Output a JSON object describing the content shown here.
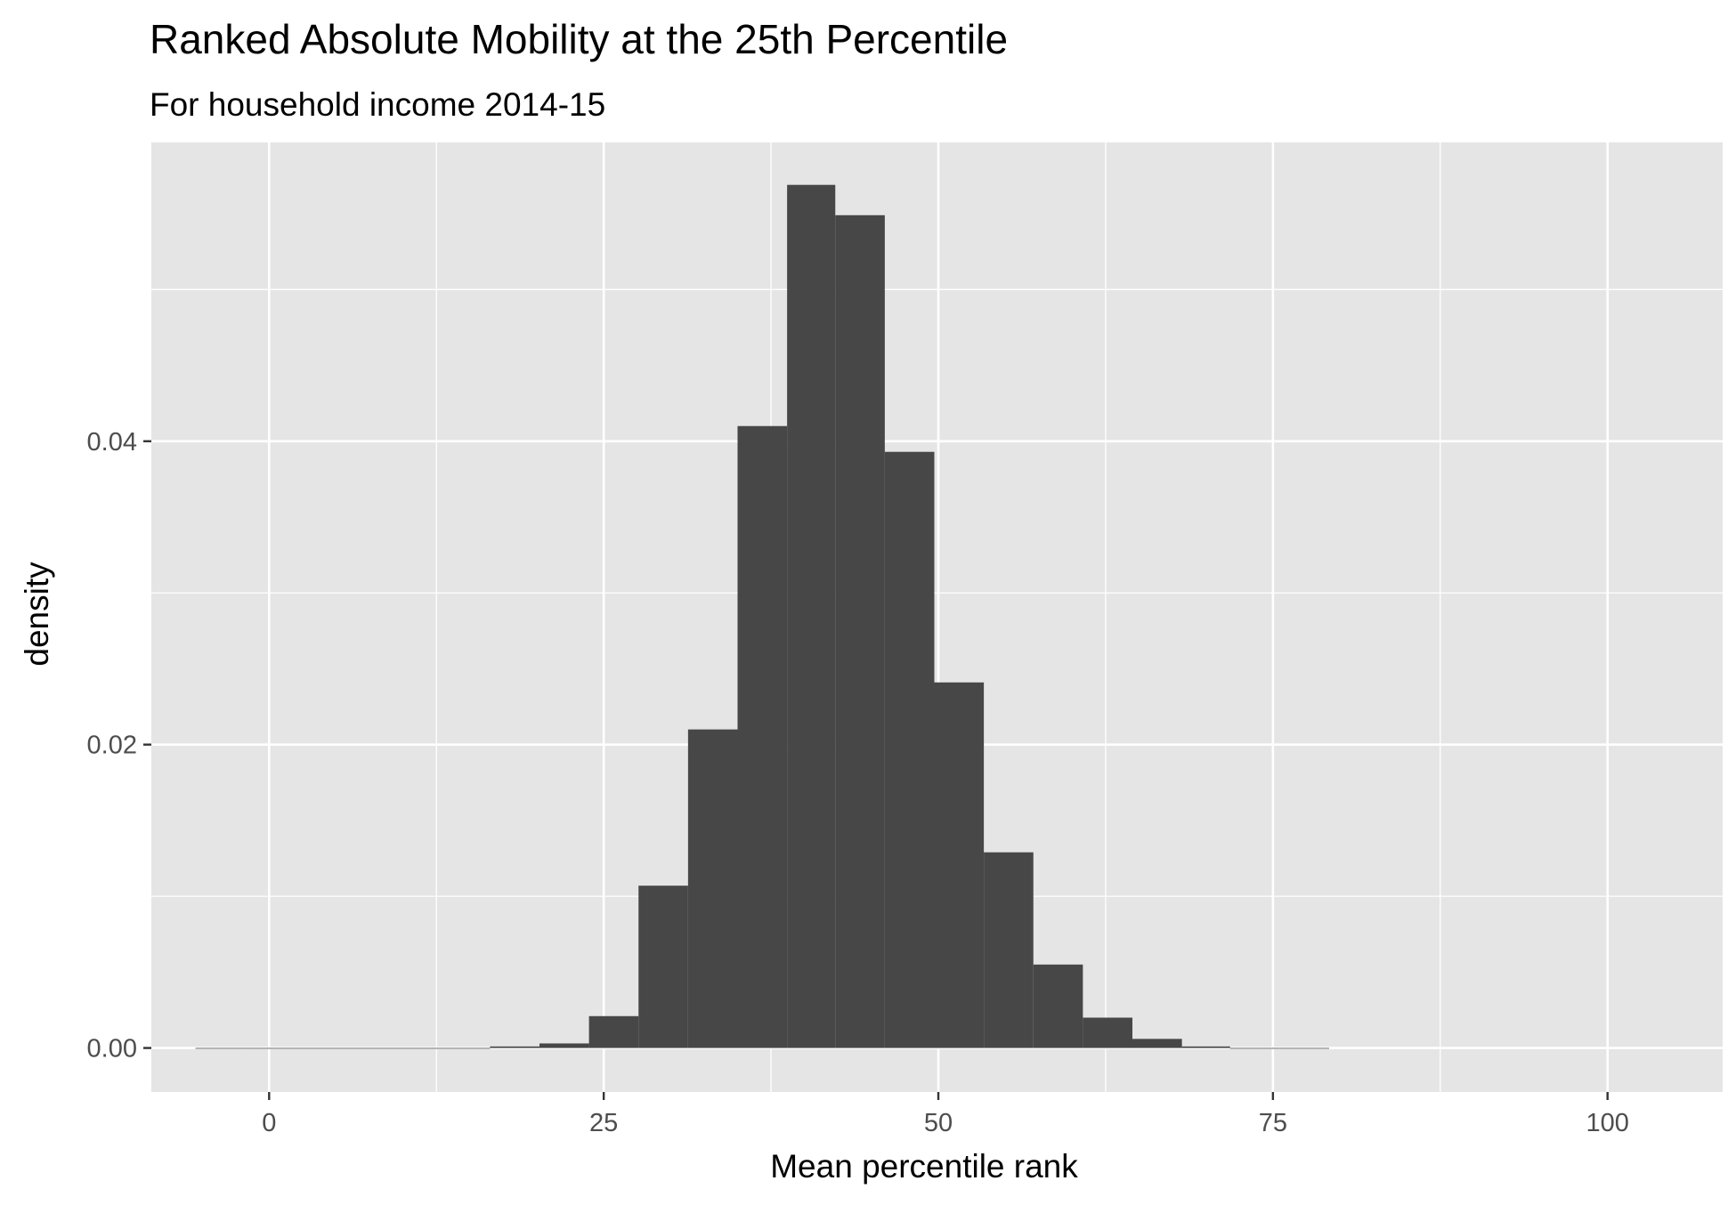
{
  "chart_data": {
    "type": "bar",
    "title": "Ranked Absolute Mobility at the 25th Percentile",
    "subtitle": "For household income 2014-15",
    "xlabel": "Mean percentile rank",
    "ylabel": "density",
    "xlim": [
      -8.8,
      108.6
    ],
    "ylim": [
      -0.0029,
      0.0597
    ],
    "x_ticks": [
      0,
      25,
      50,
      75,
      100
    ],
    "x_tick_labels": [
      "0",
      "25",
      "50",
      "75",
      "100"
    ],
    "x_minor_ticks": [
      12.5,
      37.5,
      62.5,
      87.5
    ],
    "y_ticks": [
      0.0,
      0.02,
      0.04
    ],
    "y_tick_labels": [
      "0.00",
      "0.02",
      "0.04"
    ],
    "y_minor_ticks": [
      0.01,
      0.03,
      0.05
    ],
    "grid": true,
    "legend": "none",
    "colors": {
      "panel": "#e5e5e5",
      "grid": "#ffffff",
      "bar": "#474747",
      "text": "#000000",
      "tick_text": "#4d4d4d",
      "tick_mark": "#333333"
    },
    "bins": [
      {
        "x0": -5.5,
        "x1": -1.8,
        "value": 0.0
      },
      {
        "x0": -1.8,
        "x1": 1.8,
        "value": 0.0
      },
      {
        "x0": 1.8,
        "x1": 5.5,
        "value": 0.0
      },
      {
        "x0": 5.5,
        "x1": 9.2,
        "value": 0.0
      },
      {
        "x0": 9.2,
        "x1": 12.8,
        "value": 0.0
      },
      {
        "x0": 12.8,
        "x1": 16.5,
        "value": 0.0
      },
      {
        "x0": 16.5,
        "x1": 20.2,
        "value": 0.0001
      },
      {
        "x0": 20.2,
        "x1": 23.9,
        "value": 0.0003
      },
      {
        "x0": 23.9,
        "x1": 27.6,
        "value": 0.0021
      },
      {
        "x0": 27.6,
        "x1": 31.3,
        "value": 0.0107
      },
      {
        "x0": 31.3,
        "x1": 35.0,
        "value": 0.021
      },
      {
        "x0": 35.0,
        "x1": 38.7,
        "value": 0.041
      },
      {
        "x0": 38.7,
        "x1": 42.3,
        "value": 0.0569
      },
      {
        "x0": 42.3,
        "x1": 46.0,
        "value": 0.0549
      },
      {
        "x0": 46.0,
        "x1": 49.7,
        "value": 0.0393
      },
      {
        "x0": 49.7,
        "x1": 53.4,
        "value": 0.0241
      },
      {
        "x0": 53.4,
        "x1": 57.1,
        "value": 0.0129
      },
      {
        "x0": 57.1,
        "x1": 60.8,
        "value": 0.0055
      },
      {
        "x0": 60.8,
        "x1": 64.5,
        "value": 0.002
      },
      {
        "x0": 64.5,
        "x1": 68.2,
        "value": 0.0006
      },
      {
        "x0": 68.2,
        "x1": 71.8,
        "value": 0.0001
      },
      {
        "x0": 71.8,
        "x1": 75.5,
        "value": 0.0
      },
      {
        "x0": 75.5,
        "x1": 79.2,
        "value": 0.0
      }
    ]
  }
}
